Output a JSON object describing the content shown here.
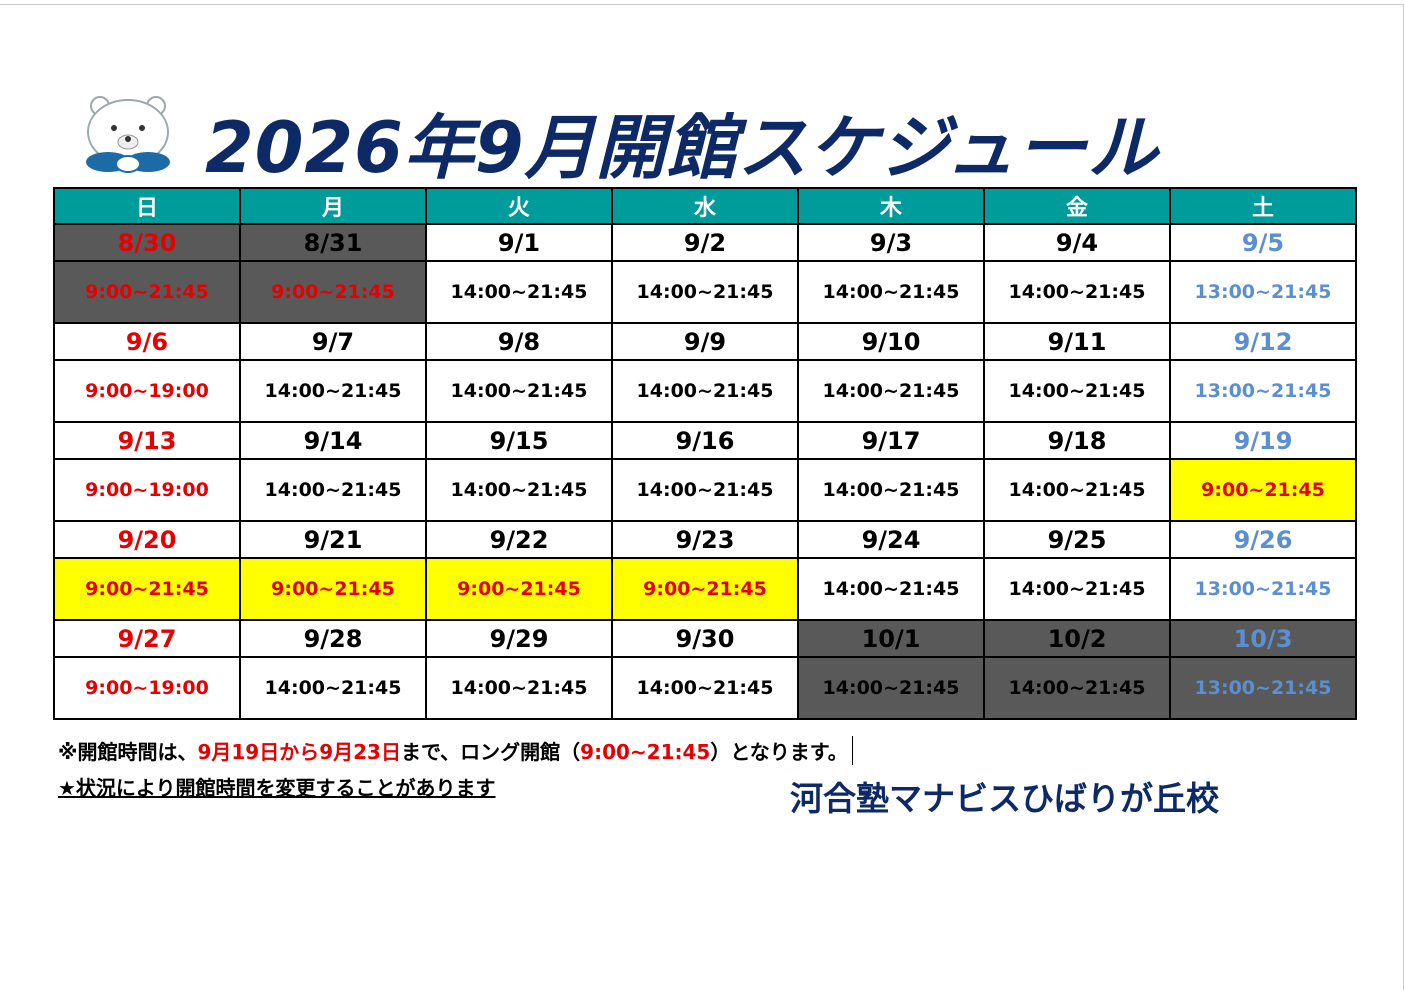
{
  "title": "2026年9月開館スケジュール",
  "table": {
    "header": [
      "日",
      "月",
      "火",
      "水",
      "木",
      "金",
      "土"
    ],
    "weeks": [
      {
        "dates": [
          "8/30",
          "8/31",
          "9/1",
          "9/2",
          "9/3",
          "9/4",
          "9/5"
        ],
        "hours": [
          "9:00~21:45",
          "9:00~21:45",
          "14:00~21:45",
          "14:00~21:45",
          "14:00~21:45",
          "14:00~21:45",
          "13:00~21:45"
        ]
      },
      {
        "dates": [
          "9/6",
          "9/7",
          "9/8",
          "9/9",
          "9/10",
          "9/11",
          "9/12"
        ],
        "hours": [
          "9:00~19:00",
          "14:00~21:45",
          "14:00~21:45",
          "14:00~21:45",
          "14:00~21:45",
          "14:00~21:45",
          "13:00~21:45"
        ]
      },
      {
        "dates": [
          "9/13",
          "9/14",
          "9/15",
          "9/16",
          "9/17",
          "9/18",
          "9/19"
        ],
        "hours": [
          "9:00~19:00",
          "14:00~21:45",
          "14:00~21:45",
          "14:00~21:45",
          "14:00~21:45",
          "14:00~21:45",
          "9:00~21:45"
        ]
      },
      {
        "dates": [
          "9/20",
          "9/21",
          "9/22",
          "9/23",
          "9/24",
          "9/25",
          "9/26"
        ],
        "hours": [
          "9:00~21:45",
          "9:00~21:45",
          "9:00~21:45",
          "9:00~21:45",
          "14:00~21:45",
          "14:00~21:45",
          "13:00~21:45"
        ]
      },
      {
        "dates": [
          "9/27",
          "9/28",
          "9/29",
          "9/30",
          "10/1",
          "10/2",
          "10/3"
        ],
        "hours": [
          "9:00~19:00",
          "14:00~21:45",
          "14:00~21:45",
          "14:00~21:45",
          "14:00~21:45",
          "14:00~21:45",
          "13:00~21:45"
        ]
      }
    ]
  },
  "notes": {
    "long_hours": [
      "※開館時間は、",
      "9月19日から9月23日",
      "まで、ロング開館（",
      "9:00~21:45",
      "）となります。"
    ],
    "change": "★状況により開館時間を変更することがあります"
  },
  "footer": "河合塾マナビスひばりが丘校"
}
